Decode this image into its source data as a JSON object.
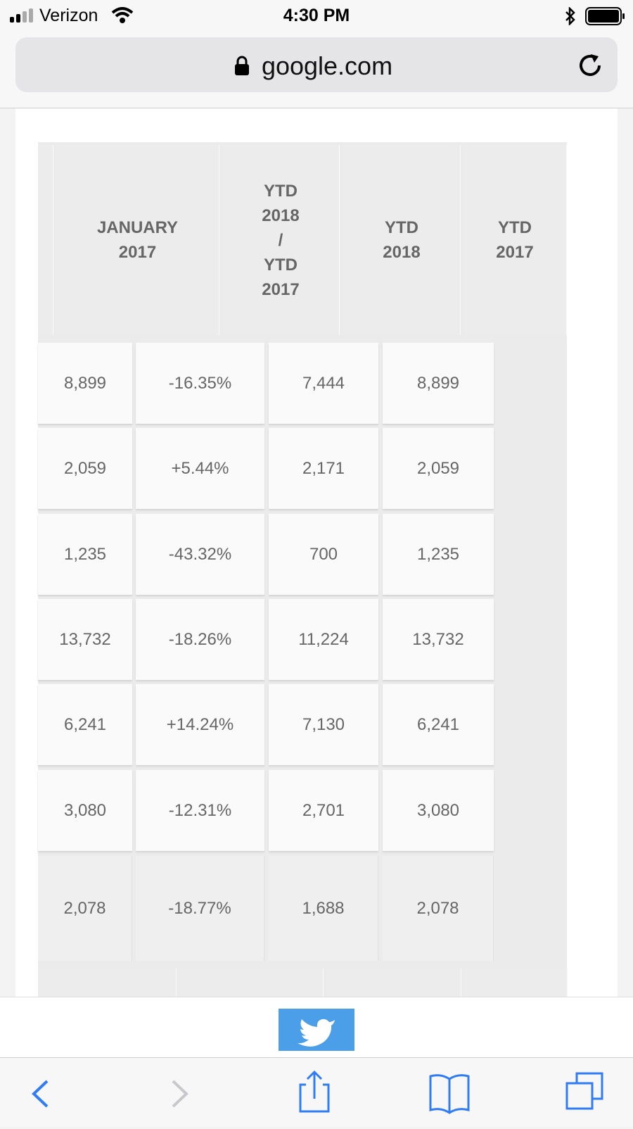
{
  "status_bar": {
    "carrier": "Verizon",
    "time": "4:30 PM"
  },
  "address_bar": {
    "url": "google.com"
  },
  "table": {
    "header": [
      [
        "JANUARY",
        "2017"
      ],
      [
        "YTD",
        "2018",
        "/",
        "YTD",
        "2017"
      ],
      [
        "YTD",
        "2018"
      ],
      [
        "YTD",
        "2017"
      ]
    ],
    "rows": [
      [
        "8,899",
        "-16.35%",
        "7,444",
        "8,899"
      ],
      [
        "2,059",
        "+5.44%",
        "2,171",
        "2,059"
      ],
      [
        "1,235",
        "-43.32%",
        "700",
        "1,235"
      ],
      [
        "13,732",
        "-18.26%",
        "11,224",
        "13,732"
      ],
      [
        "6,241",
        "+14.24%",
        "7,130",
        "6,241"
      ],
      [
        "3,080",
        "-12.31%",
        "2,701",
        "3,080"
      ],
      [
        "2,078",
        "-18.77%",
        "1,688",
        "2,078"
      ]
    ]
  }
}
